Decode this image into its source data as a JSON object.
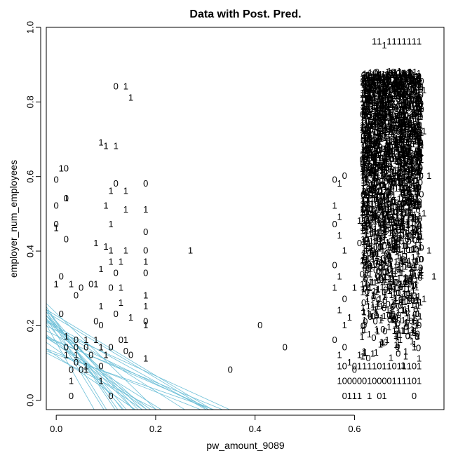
{
  "chart_data": {
    "type": "scatter",
    "title": "Data with Post. Pred.",
    "xlabel": "pw_amount_9089",
    "ylabel": "employer_num_employees",
    "xlim": [
      -0.02,
      0.78
    ],
    "ylim": [
      -0.025,
      1.0
    ],
    "x_ticks": [
      0.0,
      0.2,
      0.4,
      0.6
    ],
    "x_tick_labels": [
      "0.0",
      "0.2",
      "0.4",
      "0.6"
    ],
    "y_ticks": [
      0.0,
      0.2,
      0.4,
      0.6,
      0.8,
      1.0
    ],
    "y_tick_labels": [
      "0.0",
      "0.2",
      "0.4",
      "0.6",
      "0.8",
      "1.0"
    ],
    "grid": false,
    "legend": "none",
    "point_marker": "text label 0 or 1",
    "points": [
      {
        "x": 0.12,
        "y": 0.84,
        "label": "0"
      },
      {
        "x": 0.14,
        "y": 0.84,
        "label": "1"
      },
      {
        "x": 0.15,
        "y": 0.81,
        "label": "1"
      },
      {
        "x": 0.09,
        "y": 0.69,
        "label": "1"
      },
      {
        "x": 0.1,
        "y": 0.68,
        "label": "1"
      },
      {
        "x": 0.12,
        "y": 0.68,
        "label": "1"
      },
      {
        "x": 0.01,
        "y": 0.62,
        "label": "1"
      },
      {
        "x": 0.02,
        "y": 0.62,
        "label": "0"
      },
      {
        "x": 0.0,
        "y": 0.59,
        "label": "0"
      },
      {
        "x": 0.12,
        "y": 0.58,
        "label": "0"
      },
      {
        "x": 0.18,
        "y": 0.58,
        "label": "0"
      },
      {
        "x": 0.11,
        "y": 0.56,
        "label": "1"
      },
      {
        "x": 0.14,
        "y": 0.56,
        "label": "1"
      },
      {
        "x": 0.02,
        "y": 0.54,
        "label": "0"
      },
      {
        "x": 0.02,
        "y": 0.54,
        "label": "1"
      },
      {
        "x": 0.0,
        "y": 0.52,
        "label": "0"
      },
      {
        "x": 0.1,
        "y": 0.52,
        "label": "1"
      },
      {
        "x": 0.14,
        "y": 0.51,
        "label": "1"
      },
      {
        "x": 0.18,
        "y": 0.51,
        "label": "1"
      },
      {
        "x": 0.0,
        "y": 0.47,
        "label": "0"
      },
      {
        "x": 0.0,
        "y": 0.46,
        "label": "1"
      },
      {
        "x": 0.11,
        "y": 0.47,
        "label": "1"
      },
      {
        "x": 0.18,
        "y": 0.45,
        "label": "0"
      },
      {
        "x": 0.02,
        "y": 0.43,
        "label": "0"
      },
      {
        "x": 0.08,
        "y": 0.42,
        "label": "1"
      },
      {
        "x": 0.1,
        "y": 0.41,
        "label": "1"
      },
      {
        "x": 0.11,
        "y": 0.4,
        "label": "1"
      },
      {
        "x": 0.14,
        "y": 0.4,
        "label": "1"
      },
      {
        "x": 0.18,
        "y": 0.4,
        "label": "0"
      },
      {
        "x": 0.27,
        "y": 0.4,
        "label": "1"
      },
      {
        "x": 0.11,
        "y": 0.37,
        "label": "1"
      },
      {
        "x": 0.13,
        "y": 0.37,
        "label": "1"
      },
      {
        "x": 0.18,
        "y": 0.37,
        "label": "1"
      },
      {
        "x": 0.01,
        "y": 0.33,
        "label": "0"
      },
      {
        "x": 0.09,
        "y": 0.35,
        "label": "1"
      },
      {
        "x": 0.12,
        "y": 0.34,
        "label": "0"
      },
      {
        "x": 0.18,
        "y": 0.34,
        "label": "0"
      },
      {
        "x": 0.0,
        "y": 0.31,
        "label": "1"
      },
      {
        "x": 0.03,
        "y": 0.31,
        "label": "1"
      },
      {
        "x": 0.05,
        "y": 0.3,
        "label": "0"
      },
      {
        "x": 0.07,
        "y": 0.31,
        "label": "0"
      },
      {
        "x": 0.08,
        "y": 0.31,
        "label": "1"
      },
      {
        "x": 0.11,
        "y": 0.3,
        "label": "0"
      },
      {
        "x": 0.13,
        "y": 0.3,
        "label": "1"
      },
      {
        "x": 0.04,
        "y": 0.28,
        "label": "0"
      },
      {
        "x": 0.18,
        "y": 0.28,
        "label": "1"
      },
      {
        "x": 0.09,
        "y": 0.25,
        "label": "1"
      },
      {
        "x": 0.13,
        "y": 0.26,
        "label": "1"
      },
      {
        "x": 0.18,
        "y": 0.25,
        "label": "1"
      },
      {
        "x": 0.01,
        "y": 0.23,
        "label": "0"
      },
      {
        "x": 0.08,
        "y": 0.21,
        "label": "0"
      },
      {
        "x": 0.09,
        "y": 0.2,
        "label": "0"
      },
      {
        "x": 0.12,
        "y": 0.23,
        "label": "0"
      },
      {
        "x": 0.15,
        "y": 0.22,
        "label": "1"
      },
      {
        "x": 0.18,
        "y": 0.21,
        "label": "0"
      },
      {
        "x": 0.18,
        "y": 0.2,
        "label": "1"
      },
      {
        "x": 0.41,
        "y": 0.2,
        "label": "0"
      },
      {
        "x": 0.02,
        "y": 0.17,
        "label": "1"
      },
      {
        "x": 0.04,
        "y": 0.16,
        "label": "0"
      },
      {
        "x": 0.06,
        "y": 0.16,
        "label": "1"
      },
      {
        "x": 0.08,
        "y": 0.16,
        "label": "1"
      },
      {
        "x": 0.13,
        "y": 0.16,
        "label": "0"
      },
      {
        "x": 0.14,
        "y": 0.16,
        "label": "1"
      },
      {
        "x": 0.02,
        "y": 0.14,
        "label": "0"
      },
      {
        "x": 0.04,
        "y": 0.14,
        "label": "0"
      },
      {
        "x": 0.06,
        "y": 0.14,
        "label": "0"
      },
      {
        "x": 0.09,
        "y": 0.14,
        "label": "1"
      },
      {
        "x": 0.11,
        "y": 0.14,
        "label": "0"
      },
      {
        "x": 0.14,
        "y": 0.13,
        "label": "0"
      },
      {
        "x": 0.02,
        "y": 0.12,
        "label": "1"
      },
      {
        "x": 0.04,
        "y": 0.12,
        "label": "1"
      },
      {
        "x": 0.07,
        "y": 0.12,
        "label": "0"
      },
      {
        "x": 0.1,
        "y": 0.12,
        "label": "1"
      },
      {
        "x": 0.15,
        "y": 0.12,
        "label": "0"
      },
      {
        "x": 0.18,
        "y": 0.11,
        "label": "1"
      },
      {
        "x": 0.46,
        "y": 0.14,
        "label": "0"
      },
      {
        "x": 0.04,
        "y": 0.1,
        "label": "0"
      },
      {
        "x": 0.06,
        "y": 0.09,
        "label": "1"
      },
      {
        "x": 0.09,
        "y": 0.09,
        "label": "0"
      },
      {
        "x": 0.03,
        "y": 0.08,
        "label": "0"
      },
      {
        "x": 0.05,
        "y": 0.08,
        "label": "0"
      },
      {
        "x": 0.06,
        "y": 0.08,
        "label": "1"
      },
      {
        "x": 0.35,
        "y": 0.08,
        "label": "0"
      },
      {
        "x": 0.03,
        "y": 0.05,
        "label": "1"
      },
      {
        "x": 0.09,
        "y": 0.05,
        "label": "1"
      },
      {
        "x": 0.03,
        "y": 0.01,
        "label": "0"
      },
      {
        "x": 0.11,
        "y": 0.01,
        "label": "0"
      },
      {
        "x": 0.56,
        "y": 0.59,
        "label": "0"
      },
      {
        "x": 0.57,
        "y": 0.58,
        "label": "1"
      },
      {
        "x": 0.58,
        "y": 0.6,
        "label": "0"
      },
      {
        "x": 0.56,
        "y": 0.52,
        "label": "1"
      },
      {
        "x": 0.57,
        "y": 0.49,
        "label": "1"
      },
      {
        "x": 0.56,
        "y": 0.47,
        "label": "0"
      },
      {
        "x": 0.57,
        "y": 0.44,
        "label": "1"
      },
      {
        "x": 0.58,
        "y": 0.4,
        "label": "1"
      },
      {
        "x": 0.56,
        "y": 0.36,
        "label": "0"
      },
      {
        "x": 0.57,
        "y": 0.33,
        "label": "1"
      },
      {
        "x": 0.56,
        "y": 0.3,
        "label": "1"
      },
      {
        "x": 0.58,
        "y": 0.27,
        "label": "0"
      },
      {
        "x": 0.57,
        "y": 0.24,
        "label": "1"
      },
      {
        "x": 0.58,
        "y": 0.2,
        "label": "1"
      },
      {
        "x": 0.56,
        "y": 0.16,
        "label": "0"
      },
      {
        "x": 0.57,
        "y": 0.12,
        "label": "1"
      },
      {
        "x": 0.58,
        "y": 0.14,
        "label": "0"
      },
      {
        "x": 0.59,
        "y": 0.22,
        "label": "1"
      },
      {
        "x": 0.6,
        "y": 0.3,
        "label": "1"
      },
      {
        "x": 0.61,
        "y": 0.42,
        "label": "0"
      },
      {
        "x": 0.62,
        "y": 0.55,
        "label": "1"
      },
      {
        "x": 0.63,
        "y": 0.66,
        "label": "1"
      },
      {
        "x": 0.64,
        "y": 0.74,
        "label": "1"
      },
      {
        "x": 0.65,
        "y": 0.83,
        "label": "1"
      },
      {
        "x": 0.66,
        "y": 0.87,
        "label": "0"
      },
      {
        "x": 0.67,
        "y": 0.88,
        "label": "1"
      },
      {
        "x": 0.68,
        "y": 0.87,
        "label": "0"
      },
      {
        "x": 0.69,
        "y": 0.88,
        "label": "1"
      },
      {
        "x": 0.7,
        "y": 0.87,
        "label": "1"
      },
      {
        "x": 0.72,
        "y": 0.84,
        "label": "1"
      },
      {
        "x": 0.73,
        "y": 0.86,
        "label": "1"
      },
      {
        "x": 0.74,
        "y": 0.83,
        "label": "1"
      },
      {
        "x": 0.64,
        "y": 0.96,
        "label": "1"
      },
      {
        "x": 0.65,
        "y": 0.96,
        "label": "1"
      },
      {
        "x": 0.66,
        "y": 0.95,
        "label": "1"
      },
      {
        "x": 0.67,
        "y": 0.96,
        "label": "1"
      },
      {
        "x": 0.68,
        "y": 0.96,
        "label": "1"
      },
      {
        "x": 0.69,
        "y": 0.96,
        "label": "1"
      },
      {
        "x": 0.7,
        "y": 0.96,
        "label": "1"
      },
      {
        "x": 0.71,
        "y": 0.96,
        "label": "1"
      },
      {
        "x": 0.72,
        "y": 0.96,
        "label": "1"
      },
      {
        "x": 0.73,
        "y": 0.96,
        "label": "1"
      },
      {
        "x": 0.63,
        "y": 0.7,
        "label": "1"
      },
      {
        "x": 0.62,
        "y": 0.63,
        "label": "1"
      },
      {
        "x": 0.61,
        "y": 0.48,
        "label": "1"
      },
      {
        "x": 0.74,
        "y": 0.72,
        "label": "1"
      },
      {
        "x": 0.75,
        "y": 0.6,
        "label": "1"
      },
      {
        "x": 0.74,
        "y": 0.5,
        "label": "1"
      },
      {
        "x": 0.75,
        "y": 0.4,
        "label": "1"
      },
      {
        "x": 0.76,
        "y": 0.33,
        "label": "1"
      },
      {
        "x": 0.74,
        "y": 0.27,
        "label": "1"
      },
      {
        "x": 0.73,
        "y": 0.2,
        "label": "0"
      },
      {
        "x": 0.72,
        "y": 0.14,
        "label": "1"
      },
      {
        "x": 0.73,
        "y": 0.11,
        "label": "1"
      },
      {
        "x": 0.62,
        "y": 0.2,
        "label": "0"
      },
      {
        "x": 0.61,
        "y": 0.12,
        "label": "1"
      },
      {
        "x": 0.6,
        "y": 0.08,
        "label": "0"
      },
      {
        "x": 0.57,
        "y": 0.05,
        "label": "1"
      },
      {
        "x": 0.58,
        "y": 0.05,
        "label": "0"
      },
      {
        "x": 0.59,
        "y": 0.05,
        "label": "0"
      },
      {
        "x": 0.6,
        "y": 0.05,
        "label": "0"
      },
      {
        "x": 0.61,
        "y": 0.05,
        "label": "0"
      },
      {
        "x": 0.62,
        "y": 0.05,
        "label": "0"
      },
      {
        "x": 0.63,
        "y": 0.05,
        "label": "1"
      },
      {
        "x": 0.64,
        "y": 0.05,
        "label": "0"
      },
      {
        "x": 0.65,
        "y": 0.05,
        "label": "0"
      },
      {
        "x": 0.66,
        "y": 0.05,
        "label": "0"
      },
      {
        "x": 0.67,
        "y": 0.05,
        "label": "0"
      },
      {
        "x": 0.68,
        "y": 0.05,
        "label": "1"
      },
      {
        "x": 0.69,
        "y": 0.05,
        "label": "1"
      },
      {
        "x": 0.7,
        "y": 0.05,
        "label": "1"
      },
      {
        "x": 0.71,
        "y": 0.05,
        "label": "1"
      },
      {
        "x": 0.72,
        "y": 0.05,
        "label": "0"
      },
      {
        "x": 0.73,
        "y": 0.05,
        "label": "1"
      },
      {
        "x": 0.58,
        "y": 0.01,
        "label": "0"
      },
      {
        "x": 0.59,
        "y": 0.01,
        "label": "1"
      },
      {
        "x": 0.6,
        "y": 0.01,
        "label": "1"
      },
      {
        "x": 0.61,
        "y": 0.01,
        "label": "1"
      },
      {
        "x": 0.63,
        "y": 0.01,
        "label": "1"
      },
      {
        "x": 0.65,
        "y": 0.01,
        "label": "0"
      },
      {
        "x": 0.66,
        "y": 0.01,
        "label": "1"
      },
      {
        "x": 0.72,
        "y": 0.01,
        "label": "0"
      },
      {
        "x": 0.57,
        "y": 0.09,
        "label": "1"
      },
      {
        "x": 0.58,
        "y": 0.09,
        "label": "0"
      },
      {
        "x": 0.59,
        "y": 0.1,
        "label": "1"
      },
      {
        "x": 0.6,
        "y": 0.09,
        "label": "0"
      },
      {
        "x": 0.61,
        "y": 0.09,
        "label": "1"
      },
      {
        "x": 0.62,
        "y": 0.09,
        "label": "1"
      },
      {
        "x": 0.63,
        "y": 0.09,
        "label": "1"
      },
      {
        "x": 0.64,
        "y": 0.09,
        "label": "1"
      },
      {
        "x": 0.65,
        "y": 0.09,
        "label": "0"
      },
      {
        "x": 0.66,
        "y": 0.09,
        "label": "1"
      },
      {
        "x": 0.67,
        "y": 0.09,
        "label": "1"
      },
      {
        "x": 0.68,
        "y": 0.09,
        "label": "0"
      },
      {
        "x": 0.69,
        "y": 0.09,
        "label": "1"
      },
      {
        "x": 0.7,
        "y": 0.09,
        "label": "1"
      },
      {
        "x": 0.71,
        "y": 0.09,
        "label": "1"
      },
      {
        "x": 0.72,
        "y": 0.09,
        "label": "0"
      },
      {
        "x": 0.73,
        "y": 0.09,
        "label": "1"
      }
    ],
    "dense_cluster": {
      "x_range": [
        0.615,
        0.735
      ],
      "y_range": [
        0.08,
        0.88
      ],
      "label": "mixed 0/1",
      "note_count": 2500
    },
    "posterior_predictive_lines": {
      "color": "#6fc0d8",
      "count": 30,
      "y_intercepts_range": [
        0.1,
        0.24
      ],
      "x_intercepts_range": [
        0.07,
        0.35
      ]
    }
  }
}
